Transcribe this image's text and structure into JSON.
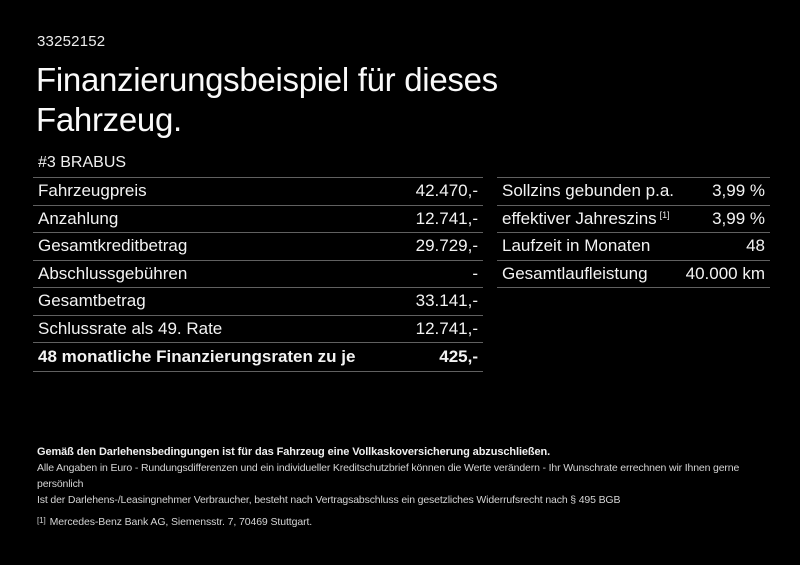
{
  "meta": {
    "doc_id": "33252152"
  },
  "header": {
    "title": "Finanzierungsbeispiel für dieses Fahrzeug.",
    "vehicle": "#3 BRABUS"
  },
  "finance": {
    "rows": [
      {
        "label": "Fahrzeugpreis",
        "value": "42.470,-"
      },
      {
        "label": "Anzahlung",
        "value": "12.741,-"
      },
      {
        "label": "Gesamtkreditbetrag",
        "value": "29.729,-"
      },
      {
        "label": "Abschlussgebühren",
        "value": "-"
      },
      {
        "label": "Gesamtbetrag",
        "value": "33.141,-"
      },
      {
        "label": "Schlussrate als 49. Rate",
        "value": "12.741,-"
      },
      {
        "label": "48 monatliche Finanzierungsraten zu je",
        "value": "425,-"
      }
    ]
  },
  "conditions": {
    "rows": [
      {
        "label": "Sollzins gebunden p.a.",
        "sup": "",
        "value": "3,99 %"
      },
      {
        "label": "effektiver Jahreszins",
        "sup": "[1]",
        "value": "3,99 %"
      },
      {
        "label": "Laufzeit in Monaten",
        "sup": "",
        "value": "48"
      },
      {
        "label": "Gesamtlaufleistung",
        "sup": "",
        "value": "40.000 km"
      }
    ]
  },
  "legal": {
    "insurance_note": "Gemäß den Darlehensbedingungen ist für das Fahrzeug eine Vollkaskoversicherung abzuschließen.",
    "rounding_note": "Alle Angaben in Euro - Rundungsdifferenzen und ein individueller Kreditschutzbrief können die Werte verändern - Ihr Wunschrate errechnen wir Ihnen gerne persönlich",
    "withdrawal_note": "Ist der Darlehens-/Leasingnehmer Verbraucher, besteht nach Vertragsabschluss ein gesetzliches Widerrufsrecht nach § 495 BGB",
    "footnote_marker": "[1]",
    "footnote_text": "Mercedes-Benz Bank AG, Siemensstr. 7, 70469 Stuttgart."
  },
  "colors": {
    "background": "#000000",
    "text": "#f1f1f1",
    "divider": "#606060"
  }
}
